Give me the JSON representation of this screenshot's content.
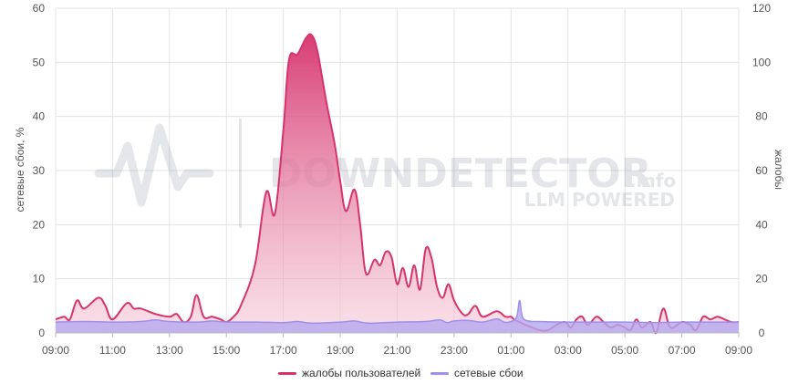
{
  "chart_data": {
    "type": "area",
    "x_labels": [
      "09:00",
      "11:00",
      "13:00",
      "15:00",
      "17:00",
      "19:00",
      "21:00",
      "23:00",
      "01:00",
      "03:00",
      "05:00",
      "07:00",
      "09:00"
    ],
    "y_left": {
      "label": "сетевые сбои, %",
      "ticks": [
        "0",
        "10",
        "20",
        "30",
        "40",
        "50",
        "60"
      ],
      "range": [
        0,
        60
      ]
    },
    "y_right": {
      "label": "жалобы",
      "ticks": [
        "0",
        "20",
        "40",
        "60",
        "80",
        "100",
        "120"
      ],
      "range": [
        0,
        120
      ]
    },
    "grid": true,
    "legend_position": "bottom",
    "watermark": {
      "main": "DOWNDETECTOR",
      "suffix": ".info",
      "sub": "LLM POWERED"
    },
    "series": [
      {
        "name": "жалобы пользователей",
        "axis": "right",
        "color": "#d6336c",
        "values": [
          [
            0,
            5
          ],
          [
            0.3,
            6
          ],
          [
            0.5,
            5
          ],
          [
            0.75,
            12
          ],
          [
            1.0,
            9
          ],
          [
            1.5,
            13
          ],
          [
            1.75,
            10
          ],
          [
            2.0,
            5
          ],
          [
            2.5,
            11
          ],
          [
            2.75,
            9
          ],
          [
            3.0,
            9
          ],
          [
            3.5,
            7
          ],
          [
            4.0,
            6
          ],
          [
            4.25,
            7
          ],
          [
            4.5,
            4
          ],
          [
            4.75,
            6
          ],
          [
            4.95,
            14
          ],
          [
            5.2,
            6
          ],
          [
            5.5,
            6
          ],
          [
            5.8,
            5
          ],
          [
            6.0,
            4
          ],
          [
            6.25,
            6
          ],
          [
            6.5,
            10
          ],
          [
            7.0,
            25
          ],
          [
            7.4,
            52
          ],
          [
            7.7,
            44
          ],
          [
            8.0,
            75
          ],
          [
            8.2,
            101
          ],
          [
            8.5,
            103
          ],
          [
            8.8,
            109
          ],
          [
            9.0,
            110
          ],
          [
            9.2,
            104
          ],
          [
            9.5,
            86
          ],
          [
            9.8,
            70
          ],
          [
            10.0,
            56
          ],
          [
            10.2,
            45
          ],
          [
            10.5,
            53
          ],
          [
            10.7,
            40
          ],
          [
            10.9,
            22
          ],
          [
            11.2,
            27
          ],
          [
            11.4,
            25
          ],
          [
            11.6,
            30
          ],
          [
            11.8,
            28
          ],
          [
            12.0,
            18
          ],
          [
            12.2,
            24
          ],
          [
            12.4,
            17
          ],
          [
            12.6,
            25
          ],
          [
            12.8,
            16
          ],
          [
            13.0,
            31
          ],
          [
            13.2,
            28
          ],
          [
            13.4,
            17
          ],
          [
            13.6,
            13
          ],
          [
            13.8,
            18
          ],
          [
            14.0,
            12
          ],
          [
            14.3,
            7
          ],
          [
            14.5,
            7
          ],
          [
            14.75,
            10
          ],
          [
            15.0,
            6
          ],
          [
            15.5,
            8
          ],
          [
            15.8,
            6
          ],
          [
            16.0,
            6
          ],
          [
            16.1,
            5
          ],
          [
            16.3,
            4
          ],
          [
            16.5,
            3
          ],
          [
            16.75,
            2
          ],
          [
            17.0,
            1
          ],
          [
            17.3,
            1
          ],
          [
            17.6,
            3
          ],
          [
            17.9,
            4
          ],
          [
            18.1,
            2
          ],
          [
            18.3,
            5
          ],
          [
            18.5,
            6
          ],
          [
            18.7,
            3
          ],
          [
            19.0,
            6
          ],
          [
            19.25,
            4
          ],
          [
            19.5,
            2
          ],
          [
            19.75,
            3
          ],
          [
            20.0,
            2
          ],
          [
            20.2,
            1
          ],
          [
            20.4,
            5
          ],
          [
            20.6,
            2
          ],
          [
            20.9,
            4
          ],
          [
            21.1,
            0
          ],
          [
            21.35,
            9
          ],
          [
            21.6,
            2
          ],
          [
            22.0,
            4
          ],
          [
            22.3,
            3
          ],
          [
            22.5,
            1
          ],
          [
            22.75,
            6
          ],
          [
            23.0,
            5
          ],
          [
            23.25,
            6
          ],
          [
            23.5,
            5
          ],
          [
            23.75,
            4
          ],
          [
            24.0,
            4
          ]
        ]
      },
      {
        "name": "сетевые сбои",
        "axis": "left",
        "color": "#9f8fe8",
        "values": [
          [
            0,
            2.0
          ],
          [
            1.0,
            2.1
          ],
          [
            2.0,
            2.0
          ],
          [
            3.0,
            2.1
          ],
          [
            3.5,
            2.4
          ],
          [
            4.0,
            2.1
          ],
          [
            5.0,
            2.0
          ],
          [
            5.5,
            2.2
          ],
          [
            6.0,
            2.0
          ],
          [
            7.0,
            2.0
          ],
          [
            8.0,
            1.9
          ],
          [
            8.5,
            2.1
          ],
          [
            9.0,
            1.8
          ],
          [
            10.0,
            2.0
          ],
          [
            10.5,
            2.2
          ],
          [
            11.0,
            1.8
          ],
          [
            12.0,
            2.0
          ],
          [
            13.0,
            2.1
          ],
          [
            13.5,
            2.4
          ],
          [
            13.75,
            1.9
          ],
          [
            14.0,
            2.2
          ],
          [
            14.5,
            2.3
          ],
          [
            15.0,
            2.0
          ],
          [
            15.5,
            2.6
          ],
          [
            15.75,
            2.0
          ],
          [
            16.0,
            2.1
          ],
          [
            16.2,
            3.0
          ],
          [
            16.3,
            6.0
          ],
          [
            16.4,
            3.0
          ],
          [
            16.6,
            2.2
          ],
          [
            17.0,
            2.1
          ],
          [
            18.0,
            2.0
          ],
          [
            19.0,
            2.0
          ],
          [
            20.0,
            2.0
          ],
          [
            21.0,
            1.9
          ],
          [
            22.0,
            2.0
          ],
          [
            23.0,
            2.0
          ],
          [
            24.0,
            2.0
          ]
        ]
      }
    ]
  }
}
